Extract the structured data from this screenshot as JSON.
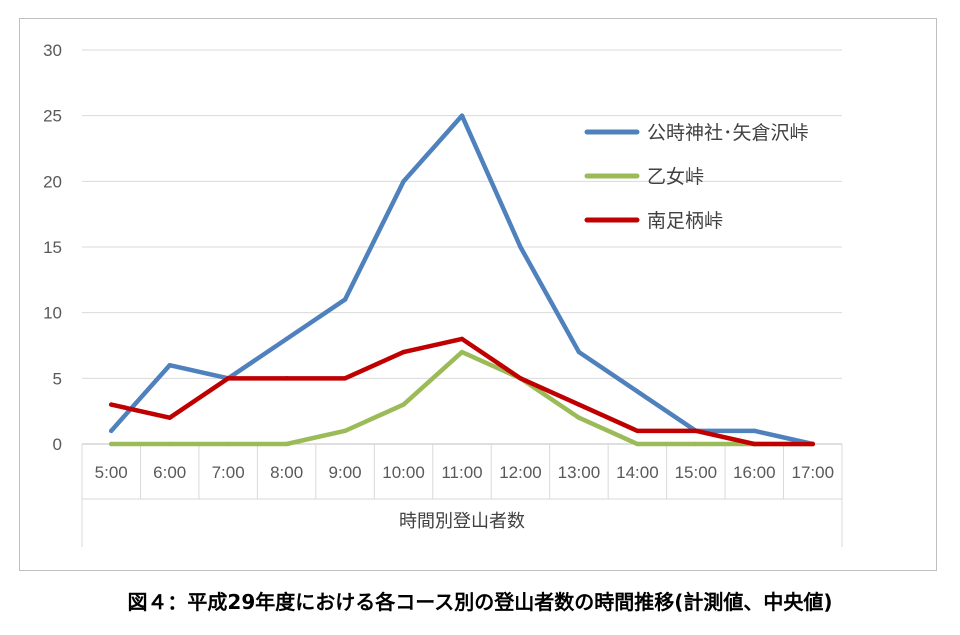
{
  "chart_data": {
    "type": "line",
    "categories": [
      "5:00",
      "6:00",
      "7:00",
      "8:00",
      "9:00",
      "10:00",
      "11:00",
      "12:00",
      "13:00",
      "14:00",
      "15:00",
      "16:00",
      "17:00"
    ],
    "series": [
      {
        "name": "公時神社･矢倉沢峠",
        "color": "#4f81bd",
        "values": [
          1,
          6,
          5,
          8,
          11,
          20,
          25,
          15,
          7,
          4,
          1,
          1,
          0
        ]
      },
      {
        "name": "乙女峠",
        "color": "#9bbb59",
        "values": [
          0,
          0,
          0,
          0,
          1,
          3,
          7,
          5,
          2,
          0,
          0,
          0,
          0
        ]
      },
      {
        "name": "南足柄峠",
        "color": "#c00000",
        "values": [
          3,
          2,
          5,
          5,
          5,
          7,
          8,
          5,
          3,
          1,
          1,
          0,
          0
        ]
      }
    ],
    "yticks": [
      0,
      5,
      10,
      15,
      20,
      25,
      30
    ],
    "ylim": [
      0,
      30
    ],
    "xlabel": "時間別登山者数",
    "grid": true,
    "legend_position": "right"
  },
  "caption": "図４：平成29年度における各コース別の登山者数の時間推移(計測値、中央値)"
}
